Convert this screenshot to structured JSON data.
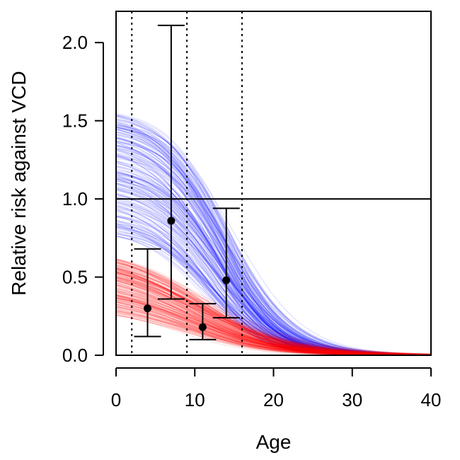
{
  "chart_data": {
    "type": "line",
    "title": "",
    "xlabel": "Age",
    "ylabel": "Relative risk against VCD",
    "xlim": [
      0,
      40
    ],
    "ylim": [
      0,
      2.2
    ],
    "xticks": [
      0,
      10,
      20,
      30,
      40
    ],
    "xtick_labels": [
      "0",
      "10",
      "20",
      "30",
      "40"
    ],
    "yticks": [
      0,
      0.5,
      1,
      1.5,
      2
    ],
    "ytick_labels": [
      "0.0",
      "0.5",
      "1.0",
      "1.5",
      "2.0"
    ],
    "grid": false,
    "legend": "none",
    "reference_hline": 1.0,
    "vertical_dotted_lines": [
      2,
      9,
      16
    ],
    "series": [
      {
        "color": "#0000ff",
        "curve": "logistic",
        "start_range": [
          0.75,
          1.55
        ],
        "midpoint_range": [
          9,
          15
        ],
        "slope_range": [
          0.22,
          0.3
        ],
        "n_draws": 220
      },
      {
        "color": "#ff0000",
        "curve": "logistic",
        "start_range": [
          0.25,
          0.62
        ],
        "midpoint_range": [
          6,
          12
        ],
        "slope_range": [
          0.15,
          0.22
        ],
        "n_draws": 220
      }
    ],
    "points": [
      {
        "x": 4,
        "y": 0.3,
        "lower": 0.12,
        "upper": 0.68
      },
      {
        "x": 7,
        "y": 0.86,
        "lower": 0.36,
        "upper": 2.11
      },
      {
        "x": 11,
        "y": 0.18,
        "lower": 0.1,
        "upper": 0.33
      },
      {
        "x": 14,
        "y": 0.48,
        "lower": 0.24,
        "upper": 0.94
      }
    ]
  }
}
